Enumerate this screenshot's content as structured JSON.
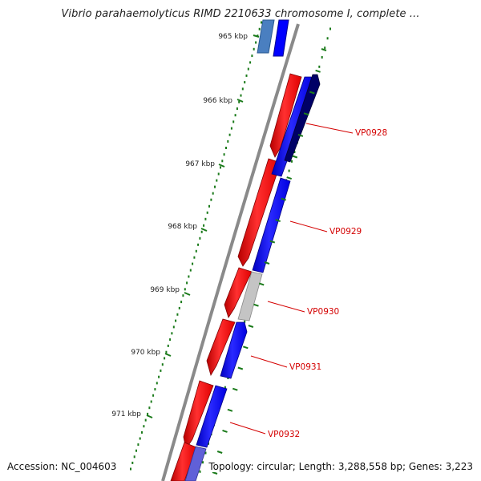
{
  "viewer": {
    "title": "Vibrio parahaemolyticus RIMD 2210633 chromosome I, complete ...",
    "accession": "Accession: NC_004603",
    "summary": "Topology: circular; Length: 3,288,558 bp; Genes: 3,223"
  },
  "ruler": {
    "ticks": [
      "965 kbp",
      "966 kbp",
      "967 kbp",
      "968 kbp",
      "969 kbp",
      "970 kbp",
      "971 kbp"
    ],
    "tick_color": "#1a7a1a",
    "label_color": "#222222"
  },
  "genes": {
    "labels": [
      "VP0928",
      "VP0929",
      "VP0930",
      "VP0931",
      "VP0932"
    ],
    "label_color": "#d40000"
  },
  "colors": {
    "forward_strand": "#ff0000",
    "reverse_strand": "#0000ff",
    "hypothetical": "#c8c8c8",
    "backbone": "#8a8a8a"
  }
}
